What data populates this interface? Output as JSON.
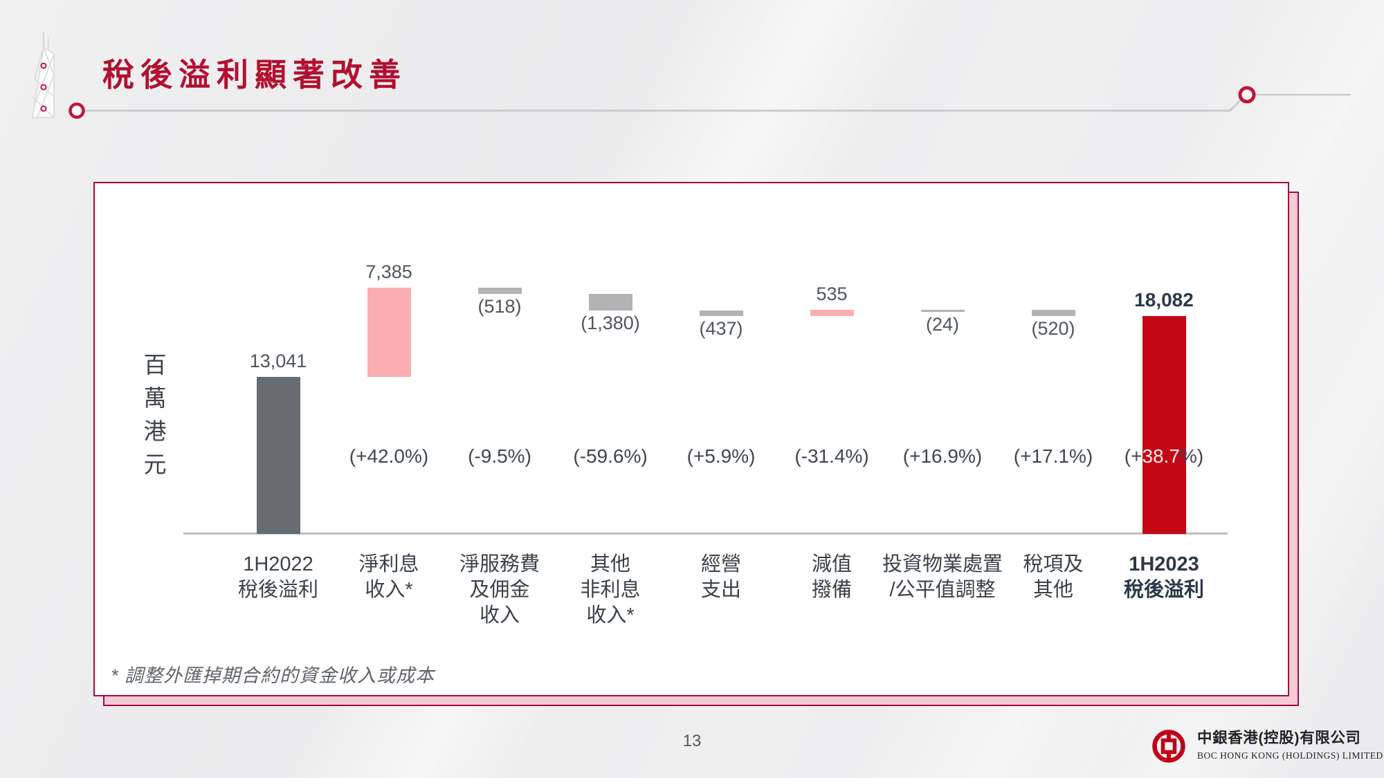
{
  "slide": {
    "title": "稅後溢利顯著改善",
    "footnote": "* 調整外匯掉期合約的資金收入或成本",
    "page_number": "13",
    "logo": {
      "cn": "中銀香港(控股)有限公司",
      "en": "BOC HONG KONG (HOLDINGS) LIMITED"
    }
  },
  "colors": {
    "title_red": "#B2102F",
    "panel_border": "#A6093D",
    "panel_shadow_pink": "#F7CAD5",
    "bar_start_gray": "#676C72",
    "bar_positive_pink": "#FBADB1",
    "bar_negative_gray": "#B1B3B5",
    "bar_total_red": "#C30813",
    "logo_red": "#C10016",
    "divider_gray": "#CBCCCE"
  },
  "chart_data": {
    "type": "bar",
    "subtype": "waterfall",
    "title": "",
    "ylabel": "百萬港元",
    "xlabel": "",
    "grid": false,
    "legend": false,
    "baseline_value": 0,
    "columns": [
      {
        "label_lines": [
          "1H2022",
          "稅後溢利"
        ],
        "value": 13041,
        "display": "13,041",
        "kind": "start",
        "style": "start",
        "pct": null,
        "label_pos": "above"
      },
      {
        "label_lines": [
          "淨利息",
          "收入*"
        ],
        "value": 7385,
        "display": "7,385",
        "kind": "increase",
        "style": "positive",
        "pct": "(+42.0%)",
        "label_pos": "above"
      },
      {
        "label_lines": [
          "淨服務費",
          "及佣金",
          "收入"
        ],
        "value": -518,
        "display": "(518)",
        "kind": "decrease",
        "style": "negative",
        "pct": "(-9.5%)",
        "label_pos": "below"
      },
      {
        "label_lines": [
          "其他",
          "非利息",
          "收入*"
        ],
        "value": -1380,
        "display": "(1,380)",
        "kind": "decrease",
        "style": "negative",
        "pct": "(-59.6%)",
        "label_pos": "below"
      },
      {
        "label_lines": [
          "經營",
          "支出"
        ],
        "value": -437,
        "display": "(437)",
        "kind": "decrease",
        "style": "negative",
        "pct": "(+5.9%)",
        "label_pos": "below"
      },
      {
        "label_lines": [
          "減值",
          "撥備"
        ],
        "value": 535,
        "display": "535",
        "kind": "increase",
        "style": "positive",
        "pct": "(-31.4%)",
        "label_pos": "above"
      },
      {
        "label_lines": [
          "投資物業處置",
          "/公平值調整"
        ],
        "value": -24,
        "display": "(24)",
        "kind": "decrease",
        "style": "negative",
        "pct": "(+16.9%)",
        "label_pos": "below"
      },
      {
        "label_lines": [
          "稅項及",
          "其他"
        ],
        "value": -520,
        "display": "(520)",
        "kind": "decrease",
        "style": "negative",
        "pct": "(+17.1%)",
        "label_pos": "below"
      },
      {
        "label_lines": [
          "1H2023",
          "稅後溢利"
        ],
        "value": 18082,
        "display": "18,082",
        "kind": "total",
        "style": "total",
        "pct": {
          "prefix": "(+",
          "highlight": "38.7",
          "suffix": "%)"
        },
        "label_pos": "above",
        "bold": true
      }
    ]
  }
}
